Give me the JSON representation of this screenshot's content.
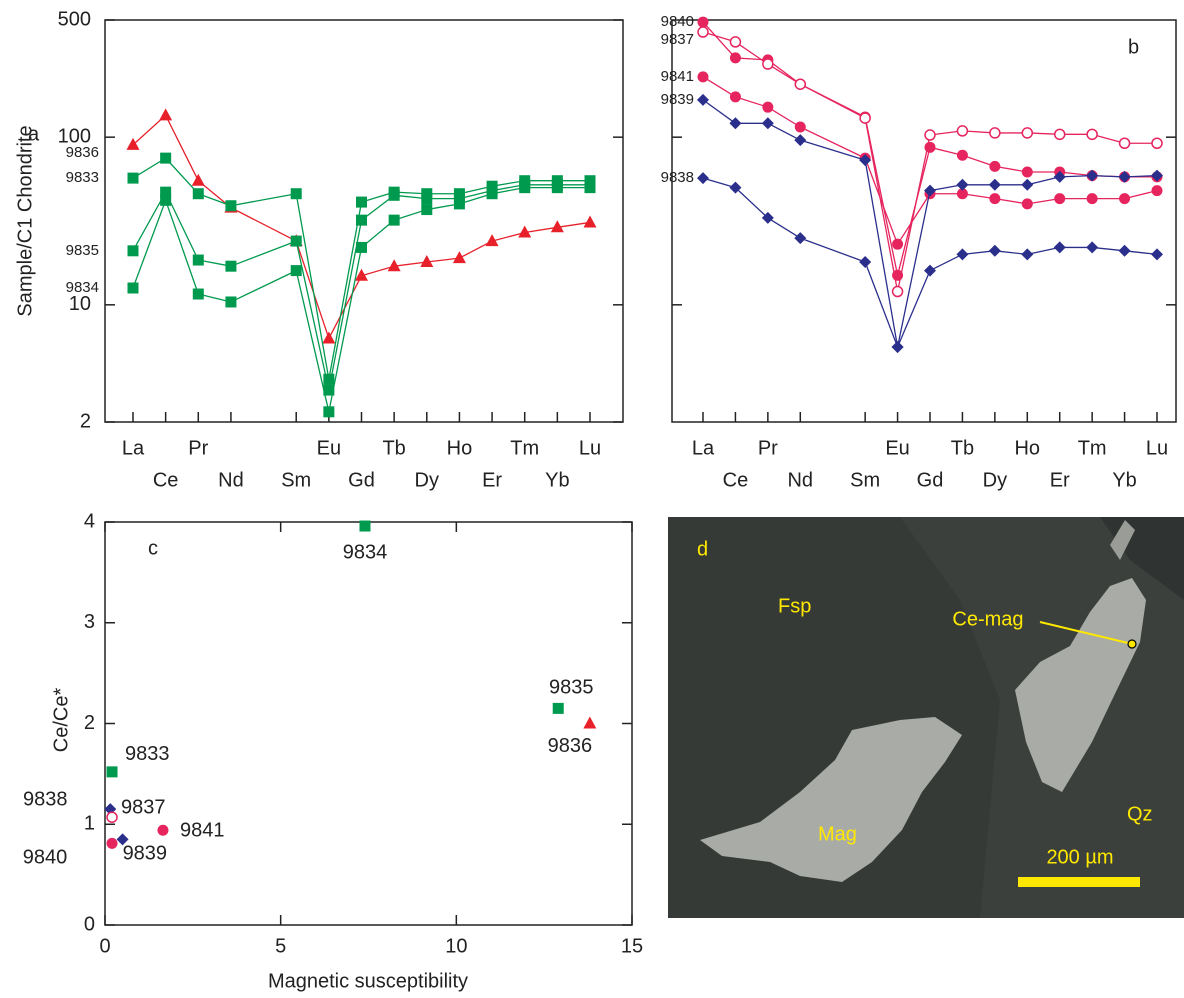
{
  "chart_data": [
    {
      "type": "line",
      "panel_label": "a",
      "y_label": "Sample/C1 Chondrite",
      "y_scale": "log",
      "ylim": [
        2,
        500
      ],
      "yticks": [
        2,
        10,
        100,
        500
      ],
      "categories": [
        "La",
        "Ce",
        "Pr",
        "Nd",
        null,
        "Sm",
        "Eu",
        "Gd",
        "Tb",
        "Dy",
        "Ho",
        "Er",
        "Tm",
        "Yb",
        "Lu"
      ],
      "series": [
        {
          "name": "9836",
          "color": "#e8202a",
          "marker": "triangle",
          "values": [
            90,
            135,
            55,
            38,
            null,
            24,
            6.3,
            14.9,
            17,
            18,
            19,
            24,
            27,
            29,
            31
          ]
        },
        {
          "name": "9833",
          "color": "#009a4e",
          "marker": "square",
          "values": [
            57,
            75,
            46,
            39,
            null,
            46,
            3.6,
            41,
            47,
            46,
            46,
            51,
            55,
            55,
            55
          ]
        },
        {
          "name": "9835",
          "color": "#009a4e",
          "marker": "square",
          "values": [
            21,
            47,
            18.5,
            17,
            null,
            24,
            3.1,
            32,
            45,
            43,
            43,
            48,
            52,
            52,
            52
          ]
        },
        {
          "name": "9834",
          "color": "#009a4e",
          "marker": "square",
          "values": [
            12.6,
            42,
            11.6,
            10.4,
            null,
            16,
            2.3,
            22,
            32,
            37,
            40,
            46,
            50,
            50,
            50
          ]
        }
      ]
    },
    {
      "type": "line",
      "panel_label": "b",
      "y_scale": "log",
      "ylim": [
        2,
        500
      ],
      "yticks": [
        10,
        100
      ],
      "show_tick_labels": false,
      "categories": [
        "La",
        "Ce",
        "Pr",
        "Nd",
        null,
        "Sm",
        "Eu",
        "Gd",
        "Tb",
        "Dy",
        "Ho",
        "Er",
        "Tm",
        "Yb",
        "Lu"
      ],
      "series": [
        {
          "name": "9840",
          "color": "#e6245e",
          "marker": "circle",
          "values": [
            486,
            297,
            289,
            207,
            null,
            132,
            15,
            87,
            78,
            67,
            62,
            62,
            59,
            58,
            58
          ]
        },
        {
          "name": "9837",
          "color": "#e6245e",
          "marker": "open-circle",
          "values": [
            424,
            370,
            273,
            207,
            null,
            130,
            12,
            103,
            109,
            106,
            106,
            104,
            104,
            92,
            92
          ]
        },
        {
          "name": "9841",
          "color": "#e6245e",
          "marker": "circle",
          "values": [
            229,
            174,
            151,
            115,
            null,
            75,
            23,
            46,
            46,
            43,
            40,
            43,
            43,
            43,
            48
          ]
        },
        {
          "name": "9839",
          "color": "#2b2f8c",
          "marker": "diamond",
          "values": [
            167,
            121,
            121,
            96,
            null,
            73,
            5.6,
            48,
            52,
            52,
            52,
            58,
            59,
            58,
            59
          ]
        },
        {
          "name": "9838",
          "color": "#2b2f8c",
          "marker": "diamond",
          "values": [
            57,
            50,
            33,
            25,
            null,
            18,
            5.6,
            16,
            20,
            21,
            20,
            22,
            22,
            21,
            20
          ]
        }
      ]
    },
    {
      "type": "scatter",
      "panel_label": "c",
      "x_label": "Magnetic susceptibility",
      "y_label": "Ce/Ce*",
      "xlim": [
        0,
        15
      ],
      "xticks": [
        0,
        5,
        10,
        15
      ],
      "ylim": [
        0,
        4
      ],
      "yticks": [
        0,
        1,
        2,
        3,
        4
      ],
      "series": [
        {
          "name": "9834",
          "color": "#009a4e",
          "marker": "square",
          "x": [
            7.4
          ],
          "values": [
            3.96
          ]
        },
        {
          "name": "9835",
          "color": "#009a4e",
          "marker": "square",
          "x": [
            12.9
          ],
          "values": [
            2.15
          ]
        },
        {
          "name": "9836",
          "color": "#e8202a",
          "marker": "triangle",
          "x": [
            13.8
          ],
          "values": [
            2.0
          ]
        },
        {
          "name": "9833",
          "color": "#009a4e",
          "marker": "square",
          "x": [
            0.2
          ],
          "values": [
            1.52
          ]
        },
        {
          "name": "9838",
          "color": "#2b2f8c",
          "marker": "diamond",
          "x": [
            0.15
          ],
          "values": [
            1.15
          ]
        },
        {
          "name": "9837",
          "color": "#e6245e",
          "marker": "open-circle",
          "x": [
            0.2
          ],
          "values": [
            1.07
          ]
        },
        {
          "name": "9839",
          "color": "#2b2f8c",
          "marker": "diamond",
          "x": [
            0.5
          ],
          "values": [
            0.85
          ]
        },
        {
          "name": "9841",
          "color": "#e6245e",
          "marker": "circle",
          "x": [
            1.65
          ],
          "values": [
            0.94
          ]
        },
        {
          "name": "9840",
          "color": "#e6245e",
          "marker": "circle",
          "x": [
            0.2
          ],
          "values": [
            0.81
          ]
        }
      ]
    }
  ],
  "image_panel": {
    "panel_label": "d",
    "labels": [
      "Fsp",
      "Ce-mag",
      "Mag",
      "Qz"
    ],
    "scale_bar": "200 µm"
  }
}
